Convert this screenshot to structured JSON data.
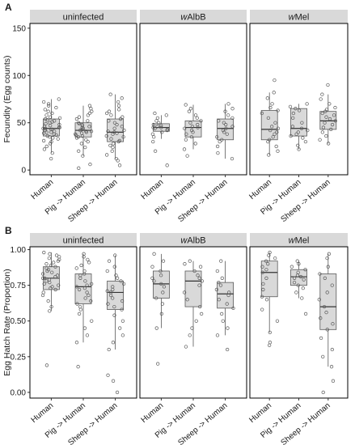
{
  "colors": {
    "strip_fill": "#d9d9d9",
    "box_fill": "#d9d9d9",
    "box_stroke": "#595959",
    "point_stroke": "#595959",
    "frame": "#000000"
  },
  "chart_data": [
    {
      "panel_label": "A",
      "type": "boxplot",
      "ylabel": "Fecundity (Egg counts)",
      "ylim": [
        -5,
        155
      ],
      "yticks": [
        0,
        50,
        100,
        150
      ],
      "ytick_labels": [
        "0",
        "50",
        "100",
        "150"
      ],
      "facets": [
        {
          "strip": [
            {
              "text": "uninfected",
              "italic": false
            }
          ],
          "categories": [
            "Human",
            "Pig -> Human",
            "Sheep -> Human"
          ],
          "boxes": [
            {
              "q1": 36,
              "median": 44,
              "q3": 54,
              "whisker_low": 18,
              "whisker_high": 75,
              "points": [
                12,
                18,
                22,
                25,
                28,
                30,
                31,
                33,
                34,
                35,
                36,
                37,
                38,
                39,
                40,
                40,
                41,
                42,
                43,
                43,
                44,
                44,
                45,
                45,
                46,
                47,
                48,
                49,
                50,
                51,
                52,
                53,
                54,
                55,
                56,
                58,
                60,
                62,
                64,
                66,
                68,
                70,
                72,
                75
              ]
            },
            {
              "q1": 35,
              "median": 42,
              "q3": 50,
              "whisker_low": 15,
              "whisker_high": 68,
              "points": [
                2,
                6,
                15,
                20,
                24,
                28,
                30,
                32,
                34,
                35,
                36,
                37,
                38,
                39,
                40,
                41,
                41,
                42,
                43,
                44,
                45,
                46,
                47,
                48,
                49,
                50,
                52,
                54,
                56,
                58,
                60,
                62,
                65,
                68
              ]
            },
            {
              "q1": 30,
              "median": 40,
              "q3": 54,
              "whisker_low": 12,
              "whisker_high": 80,
              "points": [
                5,
                10,
                12,
                16,
                20,
                24,
                26,
                28,
                30,
                31,
                33,
                35,
                36,
                38,
                39,
                40,
                41,
                42,
                44,
                46,
                48,
                50,
                52,
                54,
                56,
                58,
                60,
                62,
                64,
                68,
                72,
                76,
                80
              ]
            }
          ]
        },
        {
          "strip": [
            {
              "text": "w",
              "italic": true
            },
            {
              "text": "AlbB",
              "italic": false
            }
          ],
          "categories": [
            "Human",
            "Pig -> Human",
            "Sheep -> Human"
          ],
          "boxes": [
            {
              "q1": 41,
              "median": 45,
              "q3": 49,
              "whisker_low": 33,
              "whisker_high": 58,
              "points": [
                5,
                20,
                30,
                35,
                38,
                40,
                42,
                43,
                44,
                45,
                45,
                46,
                47,
                48,
                50,
                52,
                55,
                58,
                60
              ]
            },
            {
              "q1": 35,
              "median": 45,
              "q3": 52,
              "whisker_low": 22,
              "whisker_high": 69,
              "points": [
                15,
                22,
                28,
                32,
                35,
                38,
                40,
                42,
                44,
                45,
                46,
                48,
                50,
                52,
                55,
                58,
                62,
                65,
                69
              ]
            },
            {
              "q1": 32,
              "median": 44,
              "q3": 54,
              "whisker_low": 12,
              "whisker_high": 70,
              "points": [
                12,
                18,
                25,
                30,
                32,
                35,
                38,
                40,
                42,
                44,
                46,
                48,
                50,
                52,
                55,
                58,
                62,
                65,
                70
              ]
            }
          ]
        },
        {
          "strip": [
            {
              "text": "w",
              "italic": true
            },
            {
              "text": "Mel",
              "italic": false
            }
          ],
          "categories": [
            "Human",
            "Pig -> Human",
            "Sheep -> Human"
          ],
          "boxes": [
            {
              "q1": 32,
              "median": 43,
              "q3": 63,
              "whisker_low": 16,
              "whisker_high": 82,
              "points": [
                16,
                20,
                25,
                30,
                32,
                35,
                38,
                40,
                42,
                44,
                46,
                50,
                55,
                60,
                63,
                66,
                70,
                76,
                82,
                95
              ]
            },
            {
              "q1": 36,
              "median": 44,
              "q3": 65,
              "whisker_low": 22,
              "whisker_high": 70,
              "points": [
                22,
                26,
                30,
                34,
                36,
                38,
                40,
                42,
                44,
                46,
                50,
                55,
                60,
                63,
                65,
                67,
                70
              ]
            },
            {
              "q1": 43,
              "median": 52,
              "q3": 62,
              "whisker_low": 28,
              "whisker_high": 80,
              "points": [
                28,
                32,
                36,
                40,
                43,
                45,
                48,
                50,
                52,
                54,
                56,
                58,
                60,
                62,
                64,
                66,
                70,
                75,
                80,
                90
              ]
            }
          ]
        }
      ]
    },
    {
      "panel_label": "B",
      "type": "boxplot",
      "ylabel": "Egg Hatch Rate (Proportion)",
      "ylim": [
        -0.04,
        1.02
      ],
      "yticks": [
        0,
        0.25,
        0.5,
        0.75,
        1
      ],
      "ytick_labels": [
        "0.00",
        "0.25",
        "0.50",
        "0.75",
        "1.00"
      ],
      "facets": [
        {
          "strip": [
            {
              "text": "uninfected",
              "italic": false
            }
          ],
          "categories": [
            "Human",
            "Pig -> Human",
            "Sheep -> Human"
          ],
          "boxes": [
            {
              "q1": 0.72,
              "median": 0.8,
              "q3": 0.88,
              "whisker_low": 0.57,
              "whisker_high": 0.98,
              "points": [
                0.19,
                0.57,
                0.6,
                0.64,
                0.68,
                0.7,
                0.72,
                0.73,
                0.74,
                0.75,
                0.76,
                0.77,
                0.78,
                0.79,
                0.8,
                0.8,
                0.81,
                0.82,
                0.83,
                0.84,
                0.85,
                0.86,
                0.87,
                0.88,
                0.89,
                0.9,
                0.91,
                0.92,
                0.93,
                0.94,
                0.95,
                0.96,
                0.97,
                0.98
              ]
            },
            {
              "q1": 0.62,
              "median": 0.74,
              "q3": 0.83,
              "whisker_low": 0.35,
              "whisker_high": 0.97,
              "points": [
                0.18,
                0.35,
                0.4,
                0.45,
                0.5,
                0.55,
                0.58,
                0.6,
                0.62,
                0.64,
                0.66,
                0.68,
                0.7,
                0.72,
                0.73,
                0.74,
                0.75,
                0.76,
                0.78,
                0.8,
                0.82,
                0.83,
                0.85,
                0.87,
                0.89,
                0.91,
                0.93,
                0.95,
                0.97
              ]
            },
            {
              "q1": 0.58,
              "median": 0.7,
              "q3": 0.78,
              "whisker_low": 0.3,
              "whisker_high": 0.96,
              "points": [
                0.0,
                0.08,
                0.12,
                0.3,
                0.35,
                0.4,
                0.45,
                0.5,
                0.54,
                0.58,
                0.6,
                0.62,
                0.64,
                0.66,
                0.68,
                0.7,
                0.71,
                0.72,
                0.74,
                0.76,
                0.78,
                0.8,
                0.82,
                0.85,
                0.88,
                0.92,
                0.96
              ]
            }
          ]
        },
        {
          "strip": [
            {
              "text": "w",
              "italic": true
            },
            {
              "text": "AlbB",
              "italic": false
            }
          ],
          "categories": [
            "Human",
            "Pig -> Human",
            "Sheep -> Human"
          ],
          "boxes": [
            {
              "q1": 0.66,
              "median": 0.76,
              "q3": 0.85,
              "whisker_low": 0.45,
              "whisker_high": 0.97,
              "points": [
                0.2,
                0.45,
                0.55,
                0.62,
                0.66,
                0.7,
                0.74,
                0.76,
                0.78,
                0.8,
                0.82,
                0.85,
                0.88,
                0.92,
                0.97
              ]
            },
            {
              "q1": 0.6,
              "median": 0.78,
              "q3": 0.85,
              "whisker_low": 0.32,
              "whisker_high": 0.92,
              "points": [
                0.32,
                0.4,
                0.45,
                0.5,
                0.55,
                0.6,
                0.65,
                0.7,
                0.75,
                0.78,
                0.8,
                0.82,
                0.85,
                0.88,
                0.9,
                0.92
              ]
            },
            {
              "q1": 0.59,
              "median": 0.69,
              "q3": 0.77,
              "whisker_low": 0.4,
              "whisker_high": 0.92,
              "points": [
                0.3,
                0.4,
                0.45,
                0.5,
                0.55,
                0.59,
                0.62,
                0.65,
                0.68,
                0.7,
                0.72,
                0.75,
                0.77,
                0.8,
                0.85,
                0.92
              ]
            }
          ]
        },
        {
          "strip": [
            {
              "text": "w",
              "italic": true
            },
            {
              "text": "Mel",
              "italic": false
            }
          ],
          "categories": [
            "Human",
            "Pig -> Human",
            "Sheep -> Human"
          ],
          "boxes": [
            {
              "q1": 0.67,
              "median": 0.84,
              "q3": 0.92,
              "whisker_low": 0.42,
              "whisker_high": 0.98,
              "points": [
                0.33,
                0.35,
                0.42,
                0.5,
                0.58,
                0.65,
                0.67,
                0.72,
                0.76,
                0.8,
                0.84,
                0.86,
                0.88,
                0.9,
                0.92,
                0.94,
                0.96,
                0.98
              ]
            },
            {
              "q1": 0.75,
              "median": 0.81,
              "q3": 0.86,
              "whisker_low": 0.66,
              "whisker_high": 0.92,
              "points": [
                0.55,
                0.66,
                0.7,
                0.73,
                0.75,
                0.77,
                0.79,
                0.8,
                0.81,
                0.82,
                0.84,
                0.86,
                0.88,
                0.9,
                0.92
              ]
            },
            {
              "q1": 0.44,
              "median": 0.6,
              "q3": 0.83,
              "whisker_low": 0.18,
              "whisker_high": 0.97,
              "points": [
                0.0,
                0.08,
                0.18,
                0.25,
                0.3,
                0.38,
                0.44,
                0.48,
                0.52,
                0.56,
                0.6,
                0.65,
                0.7,
                0.75,
                0.8,
                0.83,
                0.88,
                0.94,
                0.97
              ]
            }
          ]
        }
      ]
    }
  ]
}
